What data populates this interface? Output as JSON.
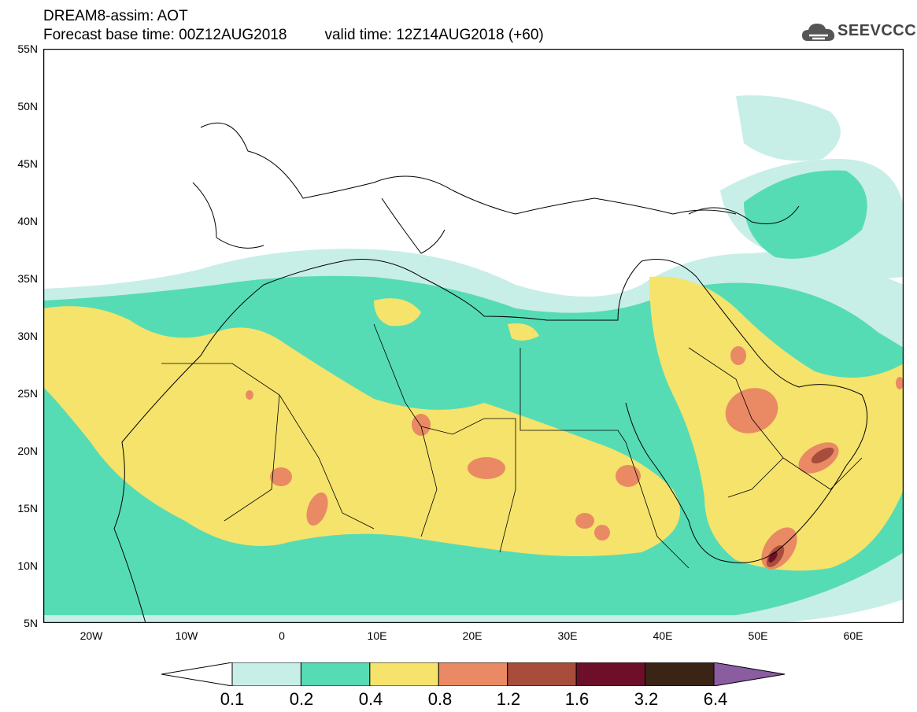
{
  "header": {
    "line1": "DREAM8-assim: AOT",
    "base_time": "Forecast base time: 00Z12AUG2018",
    "valid_time": "valid time: 12Z14AUG2018 (+60)"
  },
  "logo": {
    "text": "SEEVCCC",
    "icon": "cloud-icon"
  },
  "map": {
    "lat_labels": [
      "55N",
      "50N",
      "45N",
      "40N",
      "35N",
      "30N",
      "25N",
      "20N",
      "15N",
      "10N",
      "5N"
    ],
    "lon_labels": [
      "20W",
      "10W",
      "0",
      "10E",
      "20E",
      "30E",
      "40E",
      "50E",
      "60E"
    ],
    "lat_range": [
      5,
      55
    ],
    "lon_range": [
      -25,
      65
    ]
  },
  "colorbar": {
    "levels": [
      "0.1",
      "0.2",
      "0.4",
      "0.8",
      "1.2",
      "1.6",
      "3.2",
      "6.4"
    ],
    "colors": [
      "#ffffff",
      "#c8eee8",
      "#56dcb4",
      "#f5e36c",
      "#e98a64",
      "#a84c3c",
      "#6e0f2a",
      "#3a2416",
      "#8a5ca0"
    ]
  }
}
